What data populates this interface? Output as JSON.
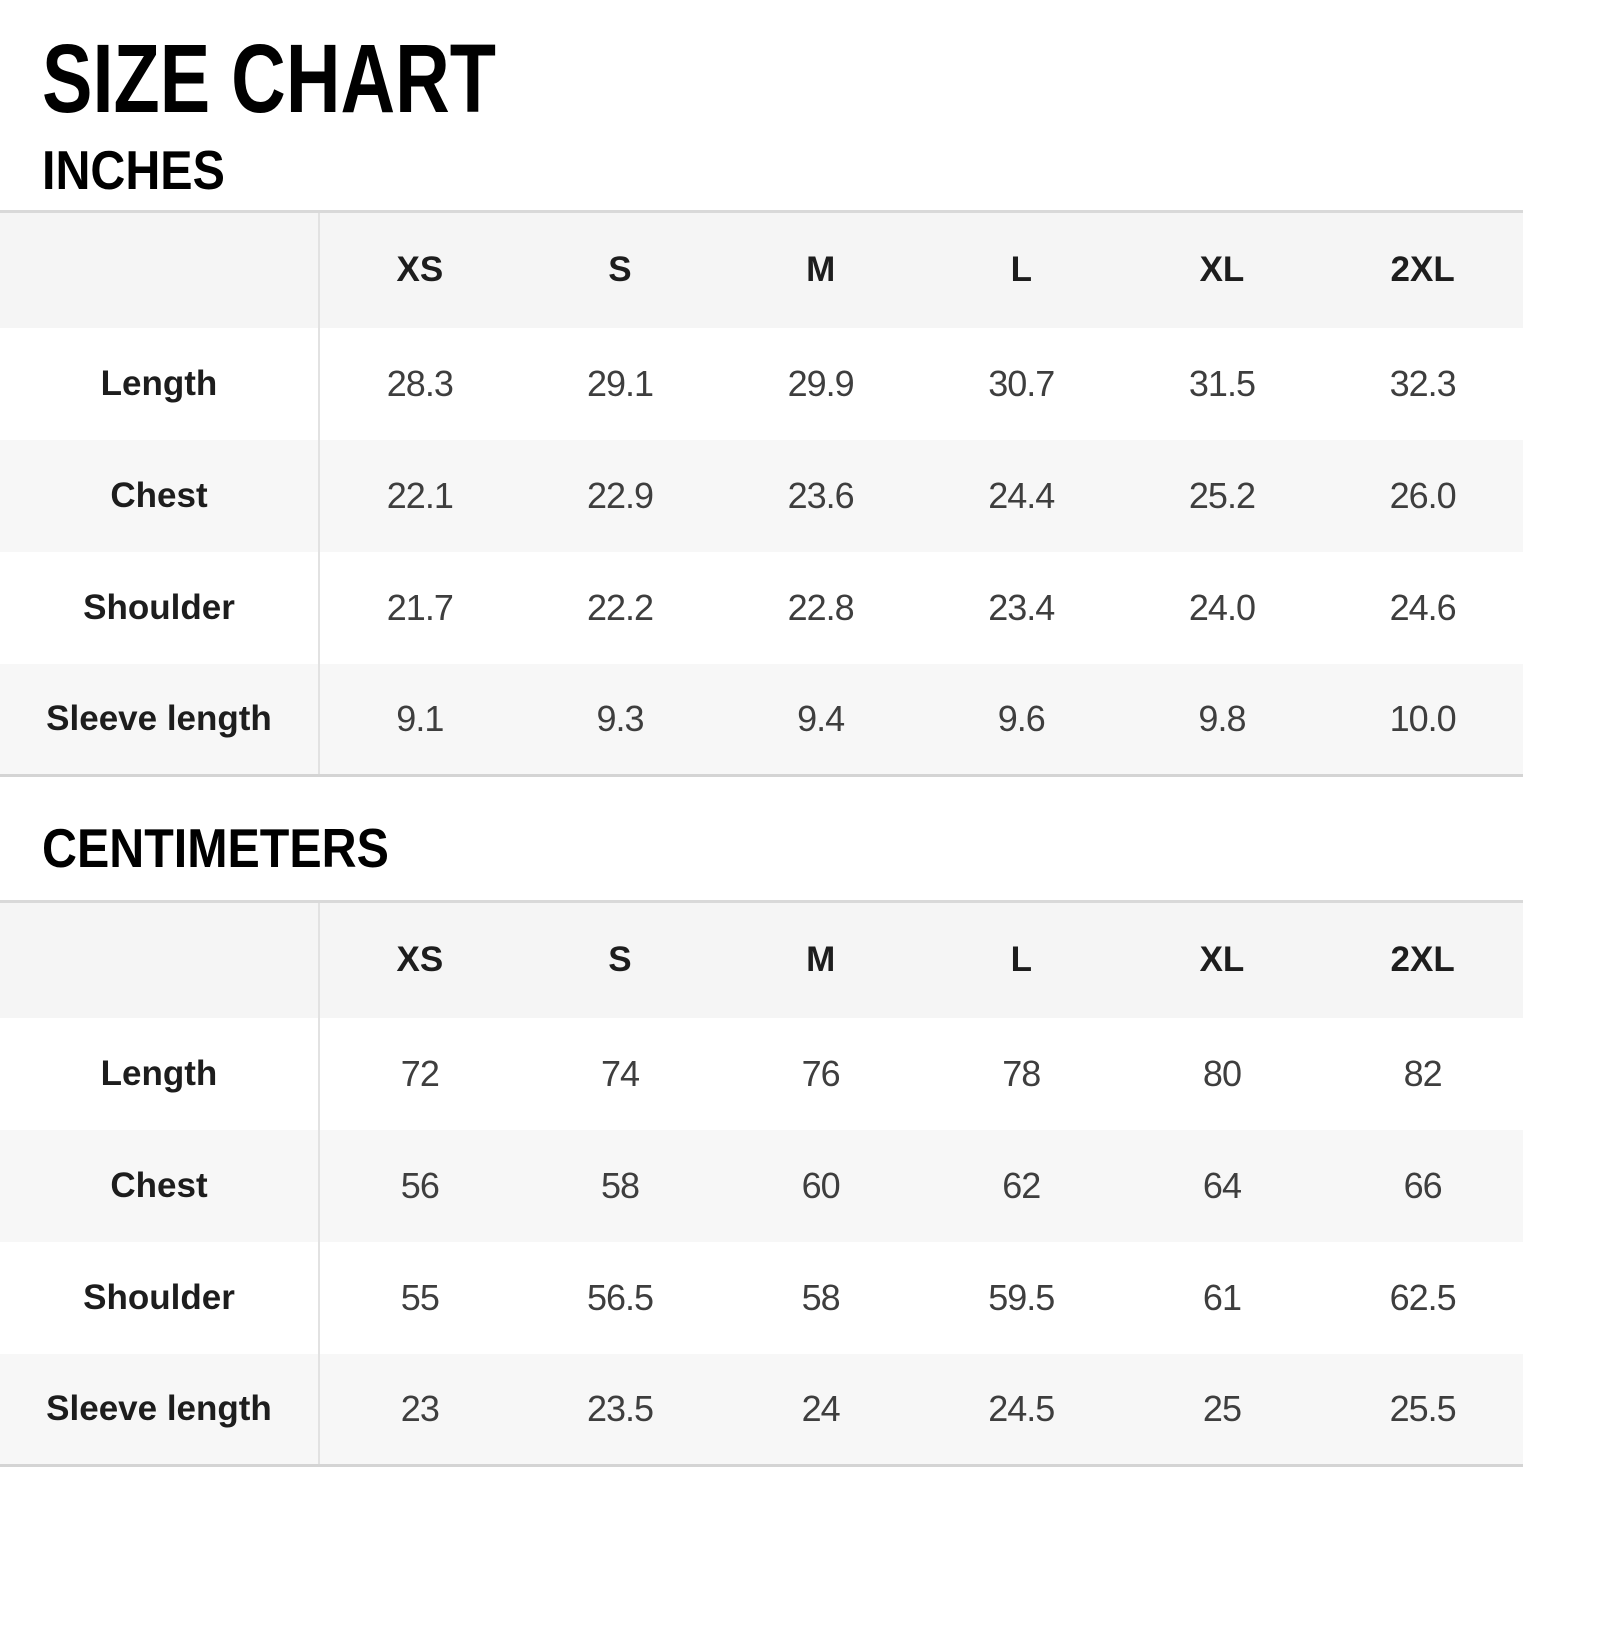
{
  "title": "SIZE CHART",
  "sections": [
    {
      "heading": "INCHES",
      "columns": [
        "XS",
        "S",
        "M",
        "L",
        "XL",
        "2XL"
      ],
      "rows": [
        {
          "label": "Length",
          "values": [
            "28.3",
            "29.1",
            "29.9",
            "30.7",
            "31.5",
            "32.3"
          ]
        },
        {
          "label": "Chest",
          "values": [
            "22.1",
            "22.9",
            "23.6",
            "24.4",
            "25.2",
            "26.0"
          ]
        },
        {
          "label": "Shoulder",
          "values": [
            "21.7",
            "22.2",
            "22.8",
            "23.4",
            "24.0",
            "24.6"
          ]
        },
        {
          "label": "Sleeve length",
          "values": [
            "9.1",
            "9.3",
            "9.4",
            "9.6",
            "9.8",
            "10.0"
          ]
        }
      ]
    },
    {
      "heading": "CENTIMETERS",
      "columns": [
        "XS",
        "S",
        "M",
        "L",
        "XL",
        "2XL"
      ],
      "rows": [
        {
          "label": "Length",
          "values": [
            "72",
            "74",
            "76",
            "78",
            "80",
            "82"
          ]
        },
        {
          "label": "Chest",
          "values": [
            "56",
            "58",
            "60",
            "62",
            "64",
            "66"
          ]
        },
        {
          "label": "Shoulder",
          "values": [
            "55",
            "56.5",
            "58",
            "59.5",
            "61",
            "62.5"
          ]
        },
        {
          "label": "Sleeve length",
          "values": [
            "23",
            "23.5",
            "24",
            "24.5",
            "25",
            "25.5"
          ]
        }
      ]
    }
  ],
  "colors": {
    "band_gray": "#f5f5f5",
    "row_band_gray": "#f7f7f7",
    "table_border": "#d9d9d9",
    "column_divider": "#e2e2e2",
    "value_text": "#3e3e3e",
    "label_text": "#1d1d1d",
    "title_text": "#000000"
  }
}
